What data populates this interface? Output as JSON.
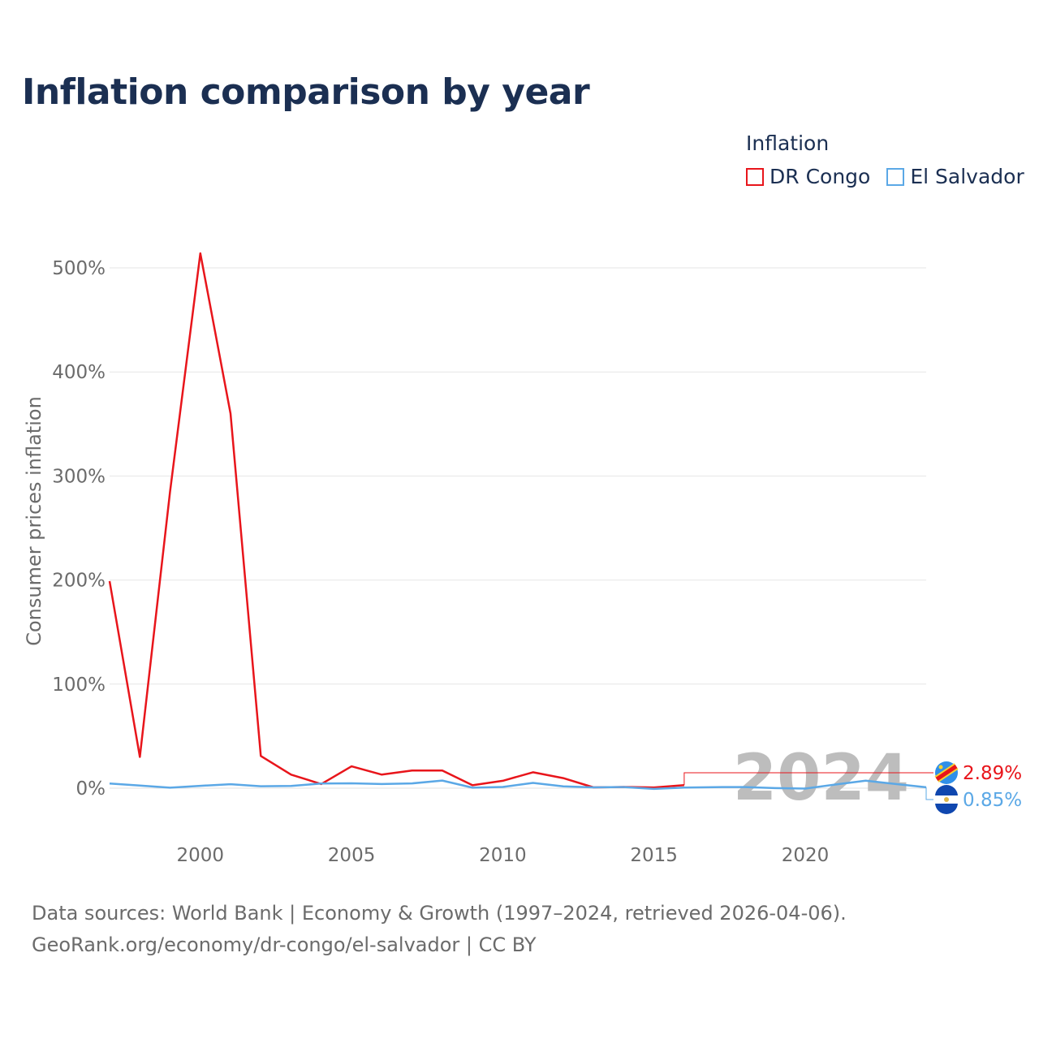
{
  "title": "Inflation comparison by year",
  "legend": {
    "title": "Inflation",
    "items": [
      {
        "label": "DR Congo",
        "color": "#e8151b"
      },
      {
        "label": "El Salvador",
        "color": "#5ba8e6"
      }
    ]
  },
  "footer": {
    "line1": "Data sources: World Bank | Economy & Growth (1997–2024, retrieved 2026-04-06).",
    "line2": "GeoRank.org/economy/dr-congo/el-salvador | CC BY"
  },
  "chart_data": {
    "type": "line",
    "title": "Inflation comparison by year",
    "xlabel": "",
    "ylabel": "Consumer prices inflation",
    "xlim": [
      1997,
      2024
    ],
    "ylim": [
      -30,
      520
    ],
    "x_ticks": [
      2000,
      2005,
      2010,
      2015,
      2020
    ],
    "y_ticks": [
      0,
      100,
      200,
      300,
      400,
      500
    ],
    "y_tick_labels": [
      "0%",
      "100%",
      "200%",
      "300%",
      "400%",
      "500%"
    ],
    "grid": true,
    "legend_position": "top-right",
    "current_year": "2024",
    "x": [
      1997,
      1998,
      1999,
      2000,
      2001,
      2002,
      2003,
      2004,
      2005,
      2006,
      2007,
      2008,
      2009,
      2010,
      2011,
      2012,
      2013,
      2014,
      2015,
      2016,
      2017,
      2018,
      2019,
      2020,
      2021,
      2022,
      2023,
      2024
    ],
    "series": [
      {
        "name": "DR Congo",
        "color": "#e8151b",
        "end_label": "2.89%",
        "flag_icon": "dr-congo-flag-icon",
        "values": [
          199,
          30,
          285,
          514,
          360,
          31,
          13,
          4,
          21,
          13,
          17,
          17,
          2.8,
          7.1,
          15.3,
          9.7,
          0.8,
          1.2,
          0.7,
          2.89,
          null,
          null,
          null,
          null,
          null,
          null,
          null,
          null
        ]
      },
      {
        "name": "El Salvador",
        "color": "#5ba8e6",
        "end_label": "0.85%",
        "flag_icon": "el-salvador-flag-icon",
        "values": [
          4.5,
          2.5,
          0.5,
          2.3,
          3.8,
          1.9,
          2.1,
          4.5,
          4.7,
          4.0,
          4.6,
          7.3,
          0.5,
          1.2,
          5.1,
          1.7,
          0.8,
          1.1,
          -0.7,
          0.6,
          1.0,
          1.1,
          0.1,
          -0.4,
          3.5,
          7.2,
          4.0,
          0.85
        ]
      }
    ]
  }
}
